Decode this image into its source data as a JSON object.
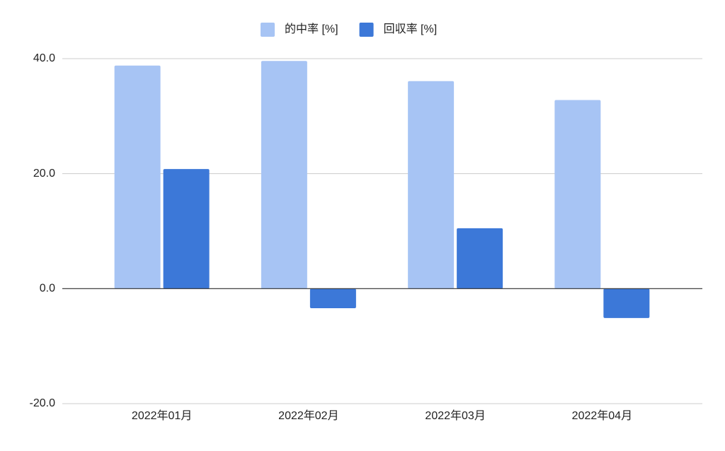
{
  "chart_data": {
    "type": "bar",
    "categories": [
      "2022年01月",
      "2022年02月",
      "2022年03月",
      "2022年04月"
    ],
    "series": [
      {
        "name": "的中率 [%]",
        "color": "#a7c4f4",
        "values": [
          38.8,
          39.6,
          36.1,
          32.8
        ]
      },
      {
        "name": "回収率 [%]",
        "color": "#3c78d8",
        "values": [
          20.8,
          -3.4,
          10.5,
          -5.1
        ]
      }
    ],
    "ylim": [
      -20,
      40
    ],
    "yticks": [
      {
        "value": -20,
        "label": "-20.0"
      },
      {
        "value": 0,
        "label": "0.0"
      },
      {
        "value": 20,
        "label": "20.0"
      },
      {
        "value": 40,
        "label": "40.0"
      }
    ],
    "grid": true,
    "legend": "top"
  }
}
